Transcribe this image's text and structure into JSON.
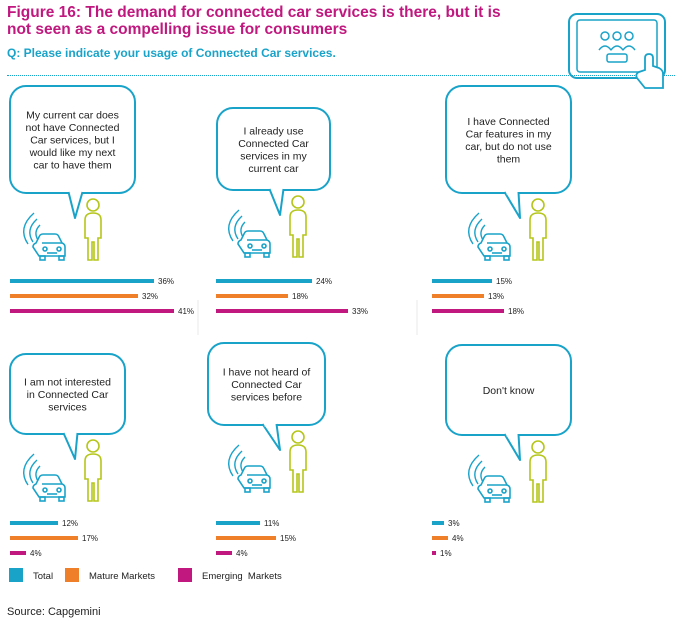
{
  "title": "Figure 16: The demand for connected car services is there, but it is not seen as a compelling issue for consumers",
  "subtitle": "Q: Please indicate your usage of Connected Car services.",
  "source": "Source: Capgemini",
  "colors": {
    "total": "#1aa3c9",
    "mature": "#f07f2a",
    "emerging": "#c0187f",
    "icon_line": "#1aa3c9",
    "person": "#b5c61a"
  },
  "chart_data": {
    "type": "bar",
    "orientation": "horizontal",
    "value_unit": "%",
    "legend_position": "bottom-left",
    "series": [
      {
        "name": "Total",
        "values": [
          36,
          24,
          15,
          12,
          11,
          3
        ]
      },
      {
        "name": "Mature Markets",
        "values": [
          32,
          18,
          13,
          17,
          15,
          4
        ]
      },
      {
        "name": "Emerging  Markets",
        "values": [
          41,
          33,
          18,
          4,
          4,
          1
        ]
      }
    ],
    "categories": [
      "My current car does not have Connected Car services, but I would like my next car to have them",
      "I already use Connected Car services in my current car",
      "I have Connected Car features in my car, but do not use them",
      "I am not interested in Connected Car services",
      "I have not heard of Connected Car services before",
      "Don't know"
    ],
    "bubble_lines": [
      [
        "My current car does",
        "not have Connected",
        "Car services, but I",
        "would like my next",
        "car to have them"
      ],
      [
        "I already use",
        "Connected Car",
        "services in my",
        "current car"
      ],
      [
        "I have Connected",
        "Car features in my",
        "car, but do not use",
        "them"
      ],
      [
        "I am not interested",
        "in Connected Car",
        "services"
      ],
      [
        "I have not heard of",
        "Connected Car",
        "services before"
      ],
      [
        "Don't know"
      ]
    ]
  }
}
